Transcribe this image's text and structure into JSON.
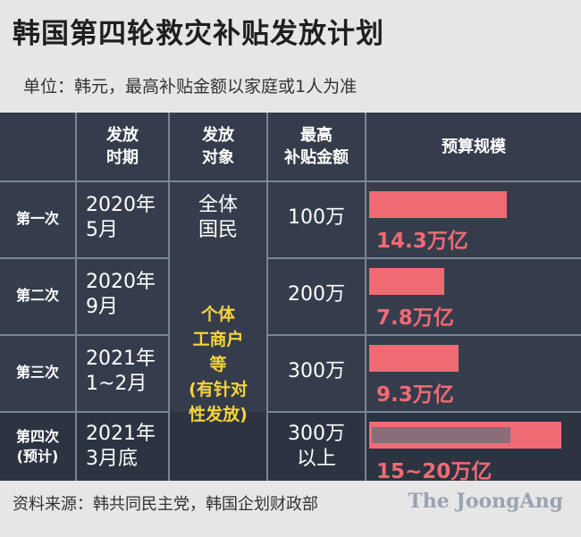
{
  "title": "韩国第四轮救灾补贴发放计划",
  "unit_note": "单位：韩元，最高补贴金额以家庭或1人为准",
  "table": {
    "headers": {
      "time": [
        "发放",
        "时期"
      ],
      "target": [
        "发放",
        "对象"
      ],
      "max": [
        "最高",
        "补贴金额"
      ],
      "budget": "预算规模"
    },
    "rows": [
      {
        "label": [
          "第一次"
        ],
        "time": [
          "2020年",
          "5月"
        ],
        "target": [
          "全体",
          "国民"
        ],
        "max": [
          "100万"
        ],
        "budget_text": "14.3万亿"
      },
      {
        "label": [
          "第二次"
        ],
        "time": [
          "2020年",
          "9月"
        ],
        "target": [],
        "max": [
          "200万"
        ],
        "budget_text": "7.8万亿"
      },
      {
        "label": [
          "第三次"
        ],
        "time": [
          "2021年",
          "1~2月"
        ],
        "target": [],
        "max": [
          "300万"
        ],
        "budget_text": "9.3万亿"
      },
      {
        "label": [
          "第四次",
          "(预计)"
        ],
        "time": [
          "2021年",
          "3月底"
        ],
        "target": [],
        "max": [
          "300万",
          "以上"
        ],
        "budget_text": "15~20万亿"
      }
    ],
    "merged_target": [
      "个体",
      "工商户",
      "等",
      "(有针对",
      "性发放)"
    ]
  },
  "chart_data": {
    "type": "bar",
    "categories": [
      "第一次",
      "第二次",
      "第三次",
      "第四次(预计)"
    ],
    "series": [
      {
        "values": [
          14.3,
          7.8,
          9.3,
          20
        ]
      }
    ],
    "value_labels": [
      "14.3万亿",
      "7.8万亿",
      "9.3万亿",
      "15~20万亿"
    ],
    "range_low": [
      null,
      null,
      null,
      15
    ],
    "orientation": "horizontal",
    "xlim": [
      0,
      20
    ],
    "title": "预算规模",
    "colors": {
      "bar": "#f06a74",
      "bar_shade": "#8a6d79",
      "value_text": "#f06a74",
      "highlight_text": "#f5d43a",
      "board": "#353d4c"
    }
  },
  "footer": {
    "source": "资料来源：韩共同民主党，韩国企划财政部",
    "brand": "The JoongAng"
  }
}
